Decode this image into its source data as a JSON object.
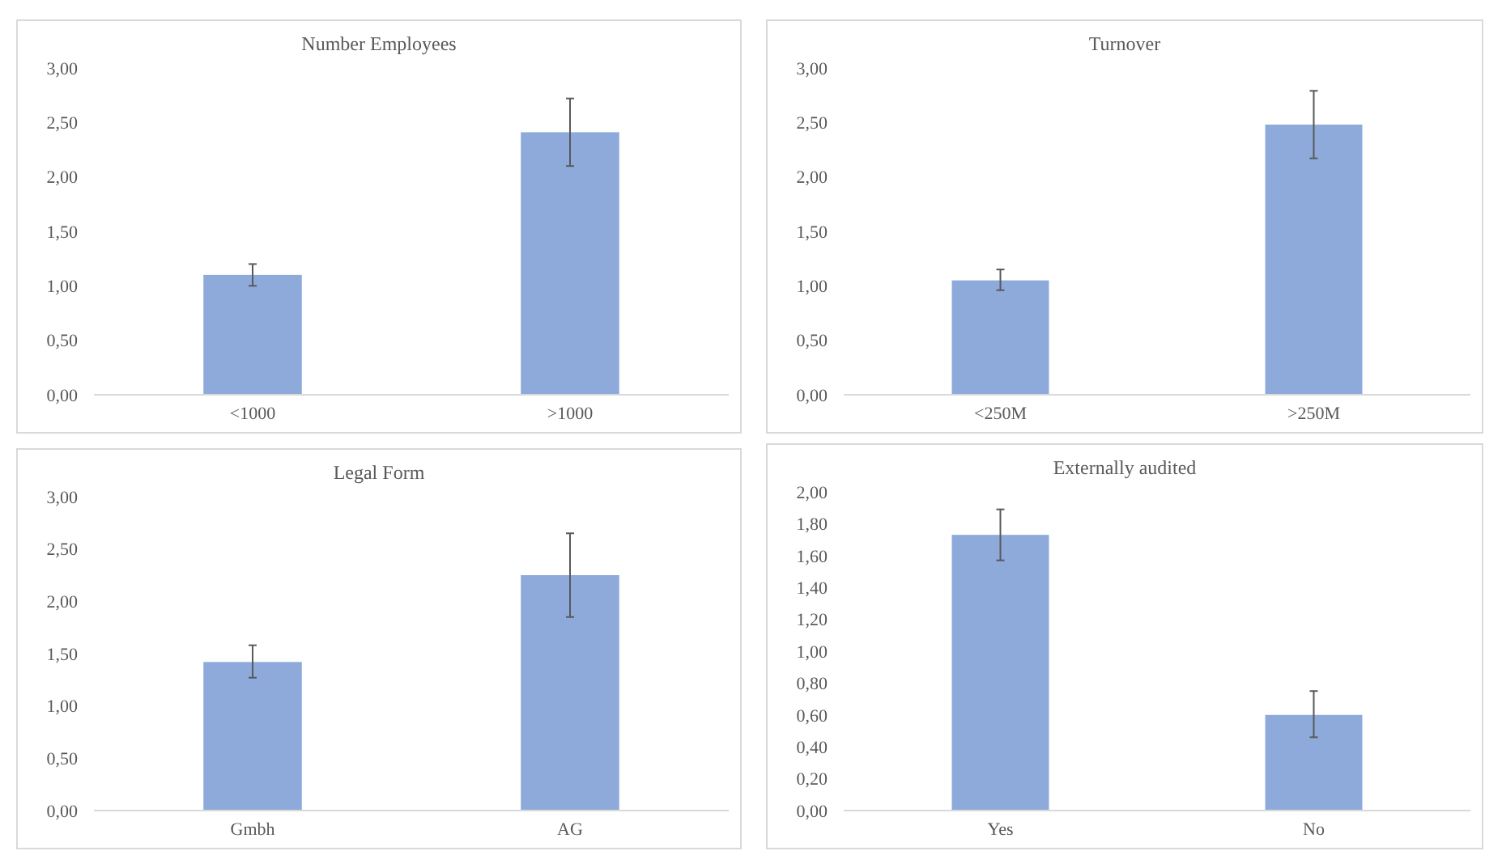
{
  "chart_data": [
    {
      "type": "bar",
      "title": "Number Employees",
      "categories": [
        "<1000",
        ">1000"
      ],
      "values": [
        1.1,
        2.41
      ],
      "errors": [
        [
          1.0,
          1.2
        ],
        [
          2.1,
          2.72
        ]
      ],
      "color": "#8eaadb",
      "ylim": [
        0,
        3
      ],
      "yticks": [
        {
          "value": 0,
          "label": "0,00"
        },
        {
          "value": 0.5,
          "label": "0,50"
        },
        {
          "value": 1,
          "label": "1,00"
        },
        {
          "value": 1.5,
          "label": "1,50"
        },
        {
          "value": 2,
          "label": "2,00"
        },
        {
          "value": 2.5,
          "label": "2,50"
        },
        {
          "value": 3,
          "label": "3,00"
        }
      ],
      "grid": false
    },
    {
      "type": "bar",
      "title": "Turnover",
      "categories": [
        "<250M",
        ">250M"
      ],
      "values": [
        1.05,
        2.48
      ],
      "errors": [
        [
          0.96,
          1.15
        ],
        [
          2.17,
          2.79
        ]
      ],
      "color": "#8eaadb",
      "ylim": [
        0,
        3
      ],
      "yticks": [
        {
          "value": 0,
          "label": "0,00"
        },
        {
          "value": 0.5,
          "label": "0,50"
        },
        {
          "value": 1,
          "label": "1,00"
        },
        {
          "value": 1.5,
          "label": "1,50"
        },
        {
          "value": 2,
          "label": "2,00"
        },
        {
          "value": 2.5,
          "label": "2,50"
        },
        {
          "value": 3,
          "label": "3,00"
        }
      ],
      "grid": false
    },
    {
      "type": "bar",
      "title": "Legal Form",
      "categories": [
        "Gmbh",
        "AG"
      ],
      "values": [
        1.42,
        2.25
      ],
      "errors": [
        [
          1.27,
          1.58
        ],
        [
          1.85,
          2.65
        ]
      ],
      "color": "#8eaadb",
      "ylim": [
        0,
        3
      ],
      "yticks": [
        {
          "value": 0,
          "label": "0,00"
        },
        {
          "value": 0.5,
          "label": "0,50"
        },
        {
          "value": 1,
          "label": "1,00"
        },
        {
          "value": 1.5,
          "label": "1,50"
        },
        {
          "value": 2,
          "label": "2,00"
        },
        {
          "value": 2.5,
          "label": "2,50"
        },
        {
          "value": 3,
          "label": "3,00"
        }
      ],
      "grid": false
    },
    {
      "type": "bar",
      "title": "Externally audited",
      "categories": [
        "Yes",
        "No"
      ],
      "values": [
        1.73,
        0.6
      ],
      "errors": [
        [
          1.57,
          1.89
        ],
        [
          0.46,
          0.75
        ]
      ],
      "color": "#8eaadb",
      "ylim": [
        0,
        2
      ],
      "yticks": [
        {
          "value": 0,
          "label": "0,00"
        },
        {
          "value": 0.2,
          "label": "0,20"
        },
        {
          "value": 0.4,
          "label": "0,40"
        },
        {
          "value": 0.6,
          "label": "0,60"
        },
        {
          "value": 0.8,
          "label": "0,80"
        },
        {
          "value": 1,
          "label": "1,00"
        },
        {
          "value": 1.2,
          "label": "1,20"
        },
        {
          "value": 1.4,
          "label": "1,40"
        },
        {
          "value": 1.6,
          "label": "1,60"
        },
        {
          "value": 1.8,
          "label": "1,80"
        },
        {
          "value": 2,
          "label": "2,00"
        }
      ],
      "grid": false
    }
  ]
}
